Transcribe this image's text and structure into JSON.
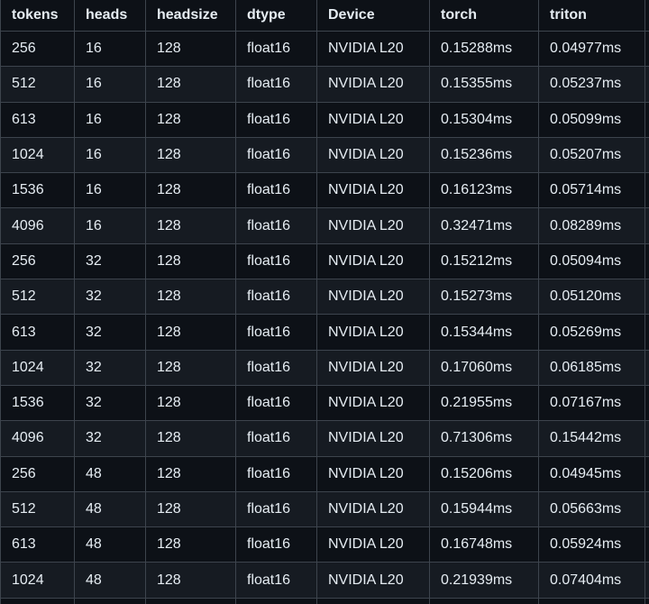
{
  "colors": {
    "background": "#0d1117",
    "row_alternate": "#161b22",
    "border": "#3d444d",
    "text": "#e6edf3"
  },
  "table": {
    "columns": [
      "tokens",
      "heads",
      "headsize",
      "dtype",
      "Device",
      "torch",
      "triton"
    ],
    "rows": [
      [
        "256",
        "16",
        "128",
        "float16",
        "NVIDIA L20",
        "0.15288ms",
        "0.04977ms"
      ],
      [
        "512",
        "16",
        "128",
        "float16",
        "NVIDIA L20",
        "0.15355ms",
        "0.05237ms"
      ],
      [
        "613",
        "16",
        "128",
        "float16",
        "NVIDIA L20",
        "0.15304ms",
        "0.05099ms"
      ],
      [
        "1024",
        "16",
        "128",
        "float16",
        "NVIDIA L20",
        "0.15236ms",
        "0.05207ms"
      ],
      [
        "1536",
        "16",
        "128",
        "float16",
        "NVIDIA L20",
        "0.16123ms",
        "0.05714ms"
      ],
      [
        "4096",
        "16",
        "128",
        "float16",
        "NVIDIA L20",
        "0.32471ms",
        "0.08289ms"
      ],
      [
        "256",
        "32",
        "128",
        "float16",
        "NVIDIA L20",
        "0.15212ms",
        "0.05094ms"
      ],
      [
        "512",
        "32",
        "128",
        "float16",
        "NVIDIA L20",
        "0.15273ms",
        "0.05120ms"
      ],
      [
        "613",
        "32",
        "128",
        "float16",
        "NVIDIA L20",
        "0.15344ms",
        "0.05269ms"
      ],
      [
        "1024",
        "32",
        "128",
        "float16",
        "NVIDIA L20",
        "0.17060ms",
        "0.06185ms"
      ],
      [
        "1536",
        "32",
        "128",
        "float16",
        "NVIDIA L20",
        "0.21955ms",
        "0.07167ms"
      ],
      [
        "4096",
        "32",
        "128",
        "float16",
        "NVIDIA L20",
        "0.71306ms",
        "0.15442ms"
      ],
      [
        "256",
        "48",
        "128",
        "float16",
        "NVIDIA L20",
        "0.15206ms",
        "0.04945ms"
      ],
      [
        "512",
        "48",
        "128",
        "float16",
        "NVIDIA L20",
        "0.15944ms",
        "0.05663ms"
      ],
      [
        "613",
        "48",
        "128",
        "float16",
        "NVIDIA L20",
        "0.16748ms",
        "0.05924ms"
      ],
      [
        "1024",
        "48",
        "128",
        "float16",
        "NVIDIA L20",
        "0.21939ms",
        "0.07404ms"
      ]
    ]
  }
}
